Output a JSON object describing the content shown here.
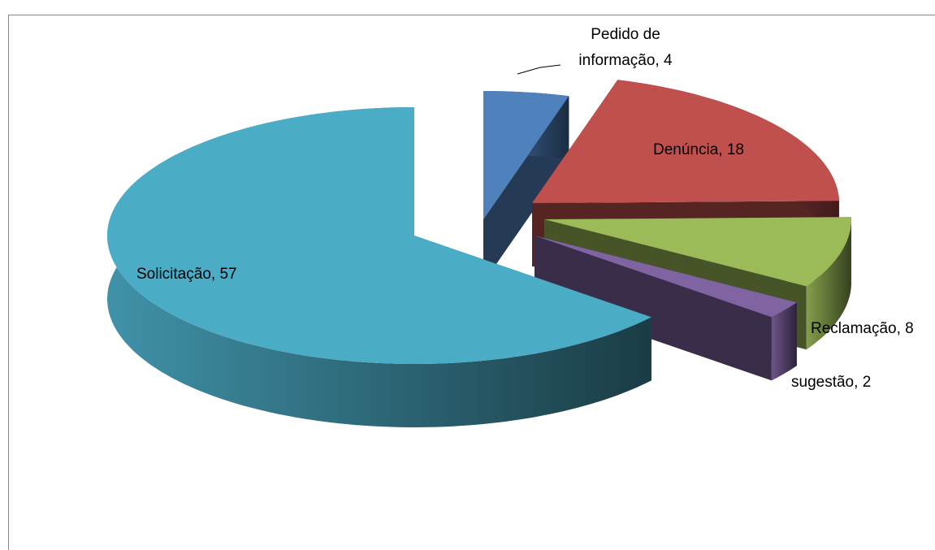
{
  "chart_data": {
    "type": "pie3d",
    "categories": [
      "Pedido de informação",
      "Denúncia",
      "Reclamação",
      "sugestão",
      "Solicitação"
    ],
    "values": [
      4,
      18,
      8,
      2,
      57
    ],
    "colors": [
      "#4f81bd",
      "#c0504d",
      "#9bbb59",
      "#8064a2",
      "#4bacc6"
    ]
  }
}
